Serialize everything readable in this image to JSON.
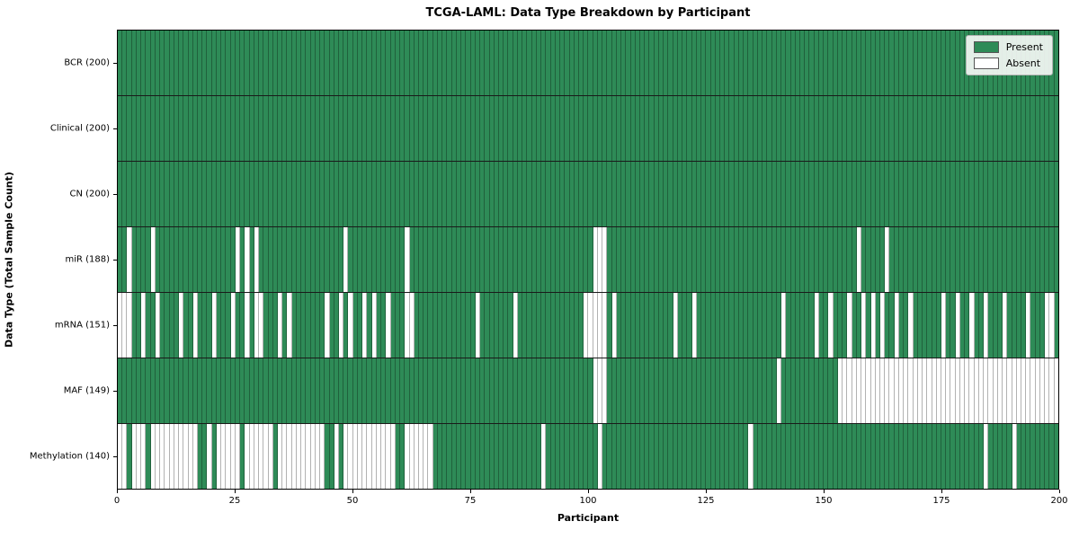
{
  "colors": {
    "present": "#2e8b57",
    "absent": "#ffffff",
    "cell_edge": "rgba(0,0,0,0.30)",
    "row_divider": "#1a1a1a",
    "plot_border": "#000000",
    "legend_bg": "#f6f9f6",
    "legend_border": "#b3b3b3"
  },
  "legend": {
    "present_label": "Present",
    "absent_label": "Absent"
  },
  "chart_data": {
    "type": "heatmap",
    "title": "TCGA-LAML: Data Type Breakdown by Participant",
    "xlabel": "Participant",
    "ylabel": "Data Type (Total Sample Count)",
    "n_participants": 200,
    "x_range": [
      0,
      200
    ],
    "x_ticks": [
      0,
      25,
      50,
      75,
      100,
      125,
      150,
      175,
      200
    ],
    "grid": "cell-edges",
    "legend_entries": [
      "Present",
      "Absent"
    ],
    "legend_position": "upper right",
    "rows": [
      {
        "name": "BCR",
        "label": "BCR (200)",
        "present_count": 200,
        "absent_participants": []
      },
      {
        "name": "Clinical",
        "label": "Clinical (200)",
        "present_count": 200,
        "absent_participants": []
      },
      {
        "name": "CN",
        "label": "CN (200)",
        "present_count": 200,
        "absent_participants": []
      },
      {
        "name": "miR",
        "label": "miR (188)",
        "present_count": 188,
        "absent_participants": [
          2,
          7,
          25,
          27,
          29,
          48,
          61,
          101,
          102,
          103,
          157,
          163
        ]
      },
      {
        "name": "mRNA",
        "label": "mRNA (151)",
        "present_count": 151,
        "absent_participants": [
          0,
          1,
          2,
          5,
          8,
          13,
          16,
          20,
          24,
          27,
          29,
          30,
          34,
          36,
          44,
          47,
          49,
          52,
          54,
          57,
          61,
          62,
          76,
          84,
          99,
          100,
          101,
          102,
          103,
          105,
          118,
          122,
          141,
          148,
          151,
          155,
          158,
          160,
          162,
          165,
          168,
          175,
          178,
          181,
          184,
          188,
          193,
          197,
          198
        ]
      },
      {
        "name": "MAF",
        "label": "MAF (149)",
        "present_count": 149,
        "absent_participants": [
          101,
          102,
          103,
          140,
          153,
          154,
          155,
          156,
          157,
          158,
          159,
          160,
          161,
          162,
          163,
          164,
          165,
          166,
          167,
          168,
          169,
          170,
          171,
          172,
          173,
          174,
          175,
          176,
          177,
          178,
          179,
          180,
          181,
          182,
          183,
          184,
          185,
          186,
          187,
          188,
          189,
          190,
          191,
          192,
          193,
          194,
          195,
          196,
          197,
          198,
          199
        ]
      },
      {
        "name": "Methylation",
        "label": "Methylation (140)",
        "present_count": 140,
        "absent_participants": [
          0,
          1,
          3,
          4,
          5,
          7,
          8,
          9,
          10,
          11,
          12,
          13,
          14,
          15,
          16,
          19,
          21,
          22,
          23,
          24,
          25,
          27,
          28,
          29,
          30,
          31,
          32,
          34,
          35,
          36,
          37,
          38,
          39,
          40,
          41,
          42,
          43,
          46,
          48,
          49,
          50,
          51,
          52,
          53,
          54,
          55,
          56,
          57,
          58,
          61,
          62,
          63,
          64,
          65,
          66,
          90,
          102,
          134,
          184,
          190
        ]
      }
    ]
  }
}
